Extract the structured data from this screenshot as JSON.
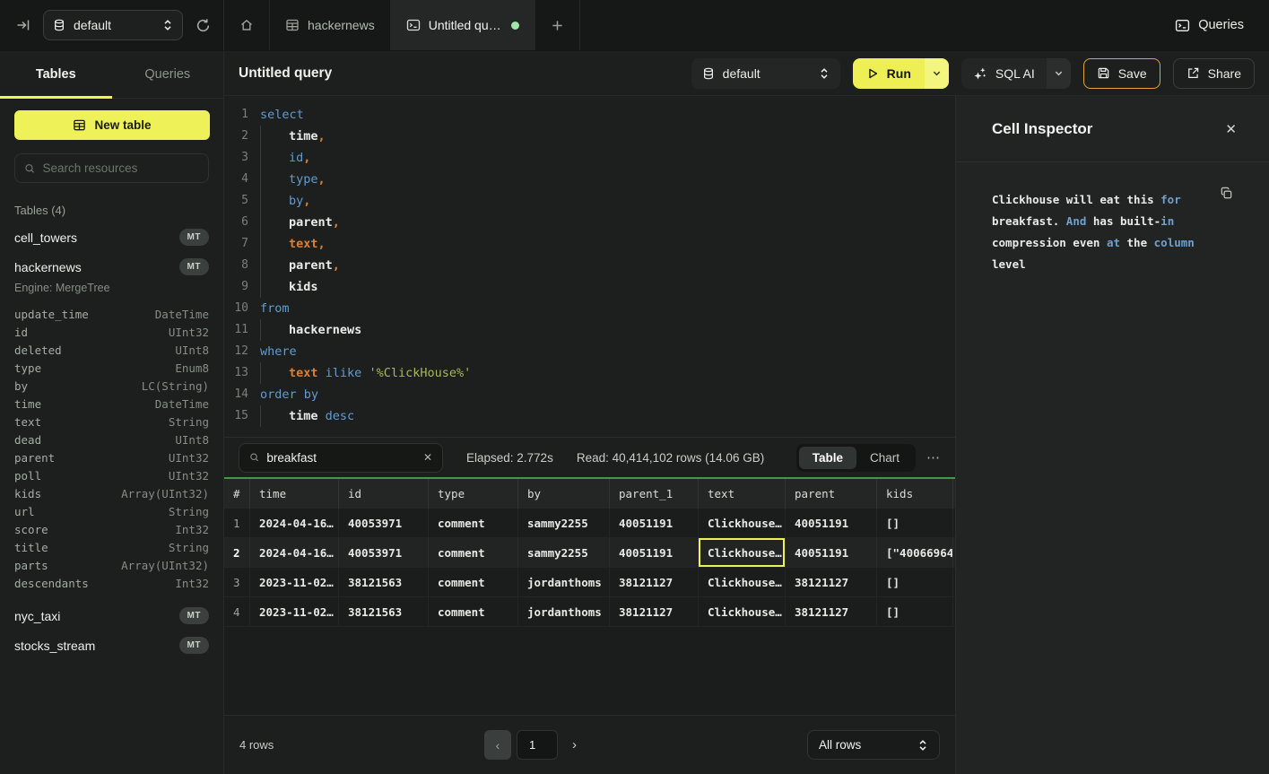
{
  "topbar": {
    "database_selector": "default",
    "tabs": [
      {
        "icon": "home-icon",
        "label": ""
      },
      {
        "icon": "table-icon",
        "label": "hackernews"
      },
      {
        "icon": "terminal-icon",
        "label": "Untitled qu…",
        "dirty": true
      },
      {
        "icon": "plus-icon",
        "label": "+"
      }
    ],
    "queries_label": "Queries"
  },
  "sidebar": {
    "tabs": [
      {
        "label": "Tables",
        "active": true
      },
      {
        "label": "Queries",
        "active": false
      }
    ],
    "new_table_label": "New table",
    "search_placeholder": "Search resources",
    "section_label": "Tables (4)",
    "tables": [
      {
        "name": "cell_towers",
        "badge": "MT"
      },
      {
        "name": "hackernews",
        "badge": "MT",
        "engine": "Engine: MergeTree",
        "columns": [
          {
            "name": "update_time",
            "type": "DateTime"
          },
          {
            "name": "id",
            "type": "UInt32"
          },
          {
            "name": "deleted",
            "type": "UInt8"
          },
          {
            "name": "type",
            "type": "Enum8"
          },
          {
            "name": "by",
            "type": "LC(String)"
          },
          {
            "name": "time",
            "type": "DateTime"
          },
          {
            "name": "text",
            "type": "String"
          },
          {
            "name": "dead",
            "type": "UInt8"
          },
          {
            "name": "parent",
            "type": "UInt32"
          },
          {
            "name": "poll",
            "type": "UInt32"
          },
          {
            "name": "kids",
            "type": "Array(UInt32)"
          },
          {
            "name": "url",
            "type": "String"
          },
          {
            "name": "score",
            "type": "Int32"
          },
          {
            "name": "title",
            "type": "String"
          },
          {
            "name": "parts",
            "type": "Array(UInt32)"
          },
          {
            "name": "descendants",
            "type": "Int32"
          }
        ]
      },
      {
        "name": "nyc_taxi",
        "badge": "MT"
      },
      {
        "name": "stocks_stream",
        "badge": "MT"
      }
    ]
  },
  "query_header": {
    "title": "Untitled query",
    "database_selector": "default",
    "run_label": "Run",
    "sql_ai_label": "SQL AI",
    "save_label": "Save",
    "share_label": "Share"
  },
  "editor": {
    "lines": [
      {
        "num": "1",
        "ind": 0,
        "tokens": [
          {
            "t": "select",
            "c": "kw"
          }
        ]
      },
      {
        "num": "2",
        "ind": 1,
        "tokens": [
          {
            "t": "time",
            "c": "id"
          },
          {
            "t": ",",
            "c": "or"
          }
        ]
      },
      {
        "num": "3",
        "ind": 1,
        "tokens": [
          {
            "t": "id",
            "c": "kw"
          },
          {
            "t": ",",
            "c": "or"
          }
        ]
      },
      {
        "num": "4",
        "ind": 1,
        "tokens": [
          {
            "t": "type",
            "c": "kw"
          },
          {
            "t": ",",
            "c": "or"
          }
        ]
      },
      {
        "num": "5",
        "ind": 1,
        "tokens": [
          {
            "t": "by",
            "c": "kw"
          },
          {
            "t": ",",
            "c": "or"
          }
        ]
      },
      {
        "num": "6",
        "ind": 1,
        "tokens": [
          {
            "t": "parent",
            "c": "id"
          },
          {
            "t": ",",
            "c": "or"
          }
        ]
      },
      {
        "num": "7",
        "ind": 1,
        "tokens": [
          {
            "t": "text",
            "c": "or"
          },
          {
            "t": ",",
            "c": "or"
          }
        ]
      },
      {
        "num": "8",
        "ind": 1,
        "tokens": [
          {
            "t": "parent",
            "c": "id"
          },
          {
            "t": ",",
            "c": "or"
          }
        ]
      },
      {
        "num": "9",
        "ind": 1,
        "tokens": [
          {
            "t": "kids",
            "c": "id"
          }
        ]
      },
      {
        "num": "10",
        "ind": 0,
        "tokens": [
          {
            "t": "from",
            "c": "kw"
          }
        ]
      },
      {
        "num": "11",
        "ind": 1,
        "tokens": [
          {
            "t": "hackernews",
            "c": "id"
          }
        ]
      },
      {
        "num": "12",
        "ind": 0,
        "tokens": [
          {
            "t": "where",
            "c": "kw"
          }
        ]
      },
      {
        "num": "13",
        "ind": 1,
        "tokens": [
          {
            "t": "text",
            "c": "or"
          },
          {
            "t": " ",
            "c": "w"
          },
          {
            "t": "ilike",
            "c": "kw"
          },
          {
            "t": " ",
            "c": "w"
          },
          {
            "t": "'%ClickHouse%'",
            "c": "str"
          }
        ]
      },
      {
        "num": "14",
        "ind": 0,
        "tokens": [
          {
            "t": "order by",
            "c": "kw"
          }
        ]
      },
      {
        "num": "15",
        "ind": 1,
        "tokens": [
          {
            "t": "time",
            "c": "id"
          },
          {
            "t": " ",
            "c": "w"
          },
          {
            "t": "desc",
            "c": "kw"
          }
        ]
      }
    ]
  },
  "results_toolbar": {
    "search_value": "breakfast",
    "elapsed": "Elapsed: 2.772s",
    "read": "Read: 40,414,102 rows (14.06 GB)",
    "view_tabs": [
      {
        "label": "Table",
        "active": true
      },
      {
        "label": "Chart",
        "active": false
      }
    ],
    "more_label": "⋯"
  },
  "results_table": {
    "columns": [
      "#",
      "time",
      "id",
      "type",
      "by",
      "parent_1",
      "text",
      "parent",
      "kids"
    ],
    "rows": [
      [
        "1",
        "2024-04-16…",
        "40053971",
        "comment",
        "sammy2255",
        "40051191",
        "Clickhouse…",
        "40051191",
        "[]"
      ],
      [
        "2",
        "2024-04-16…",
        "40053971",
        "comment",
        "sammy2255",
        "40051191",
        "Clickhouse…",
        "40051191",
        "[\"40066964…"
      ],
      [
        "3",
        "2023-11-02…",
        "38121563",
        "comment",
        "jordanthoms",
        "38121127",
        "Clickhouse…",
        "38121127",
        "[]"
      ],
      [
        "4",
        "2023-11-02…",
        "38121563",
        "comment",
        "jordanthoms",
        "38121127",
        "Clickhouse…",
        "38121127",
        "[]"
      ]
    ],
    "selected_cell": {
      "row": 2,
      "column": "text"
    }
  },
  "footer": {
    "row_count": "4 rows",
    "prev_label": "‹",
    "page_value": "1",
    "next_label": "›",
    "page_size_value": "All rows"
  },
  "inspector": {
    "title": "Cell Inspector",
    "lines": [
      [
        {
          "t": "Clickhouse will eat this ",
          "c": "w"
        },
        {
          "t": "for",
          "c": "b"
        }
      ],
      [
        {
          "t": "breakfast. ",
          "c": "w"
        },
        {
          "t": "And",
          "c": "b"
        },
        {
          "t": " has built-",
          "c": "w"
        },
        {
          "t": "in",
          "c": "b"
        }
      ],
      [
        {
          "t": "compression even ",
          "c": "w"
        },
        {
          "t": "at",
          "c": "b"
        },
        {
          "t": " the ",
          "c": "w"
        },
        {
          "t": "column",
          "c": "b"
        },
        {
          "t": " level",
          "c": "w"
        }
      ]
    ]
  },
  "colors": {
    "accent_yellow": "#EFF158",
    "save_button_border": "#E5A33C",
    "tab_green_dot": "#9EE9A8",
    "results_header_green": "#3E9B43",
    "code_keyword_blue": "#649BD0",
    "code_orange": "#DD8033",
    "code_string_green": "#A9B75F"
  }
}
